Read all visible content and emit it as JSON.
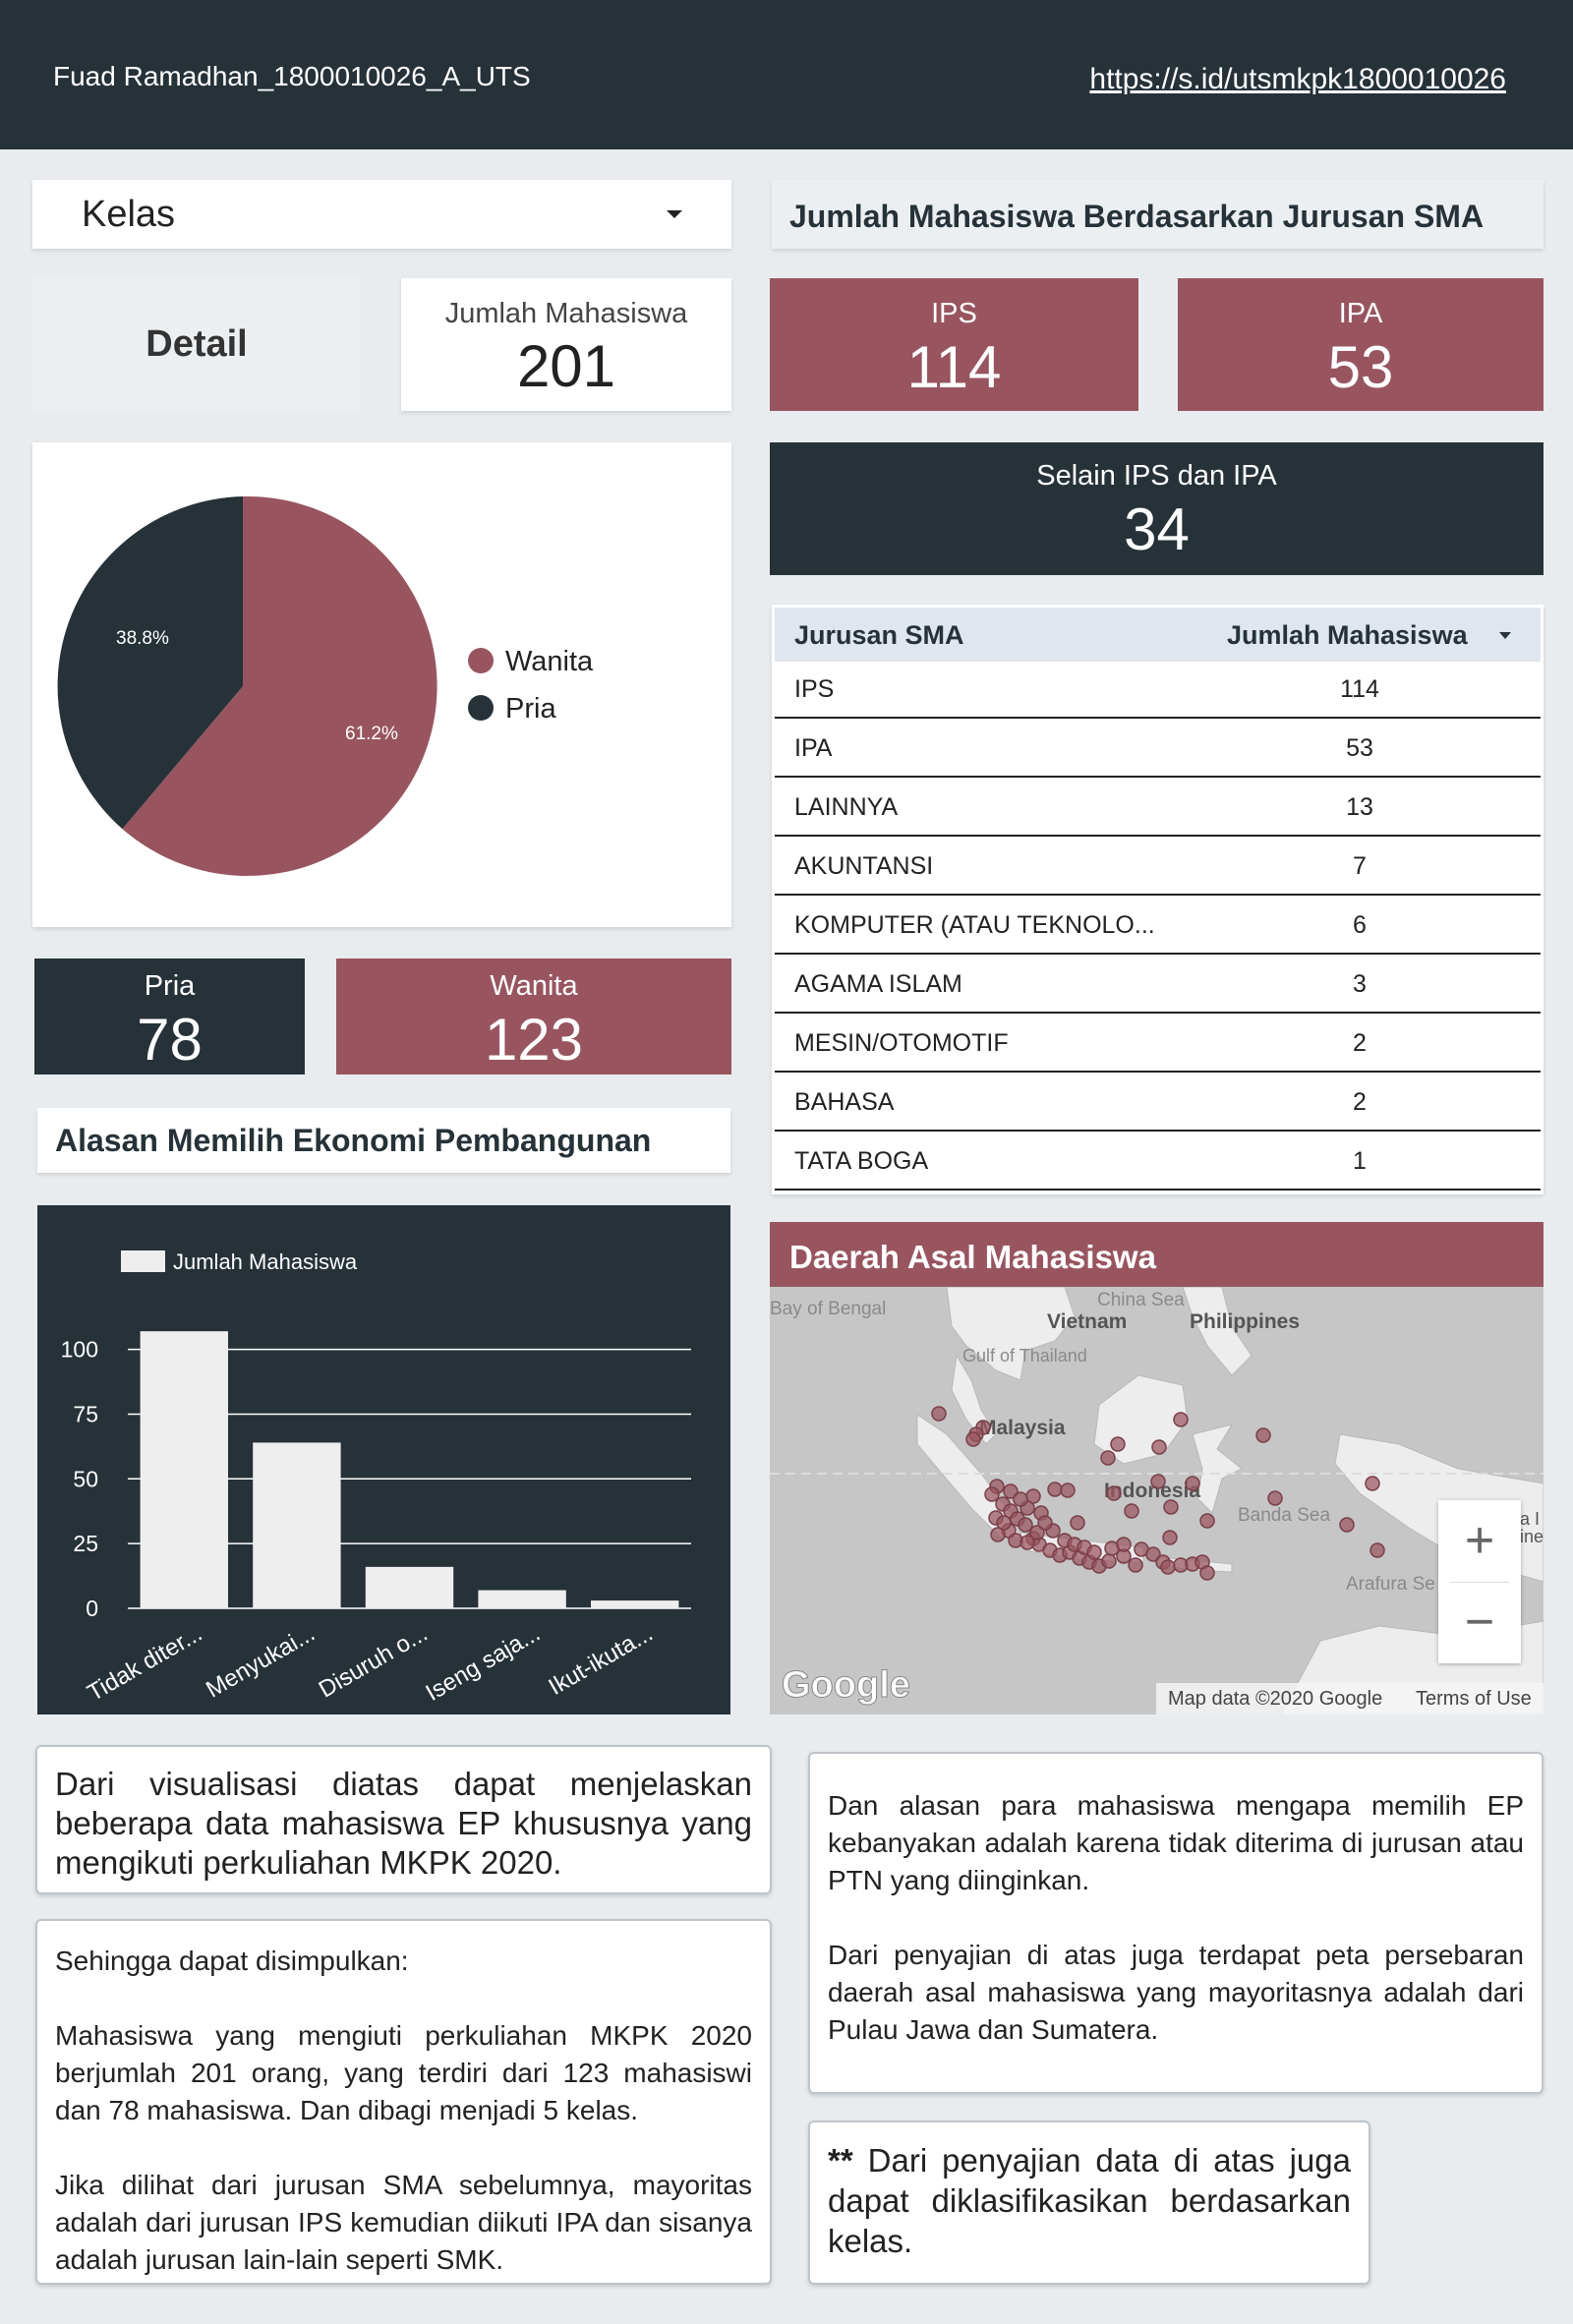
{
  "header": {
    "title": "Fuad Ramadhan_1800010026_A_UTS",
    "link": "https://s.id/utsmkpk1800010026"
  },
  "filter": {
    "label": "Kelas"
  },
  "detail_button": "Detail",
  "total": {
    "label": "Jumlah Mahasiswa",
    "value": "201"
  },
  "gender_pie": {
    "legend": [
      "Wanita",
      "Pria"
    ],
    "pct_wanita": "61.2%",
    "pct_pria": "38.8%",
    "colors": {
      "wanita": "#985560",
      "pria": "#263238"
    }
  },
  "pria": {
    "label": "Pria",
    "value": "78"
  },
  "wanita": {
    "label": "Wanita",
    "value": "123"
  },
  "jurusan_title": "Jumlah Mahasiswa Berdasarkan Jurusan SMA",
  "ips": {
    "label": "IPS",
    "value": "114"
  },
  "ipa": {
    "label": "IPA",
    "value": "53"
  },
  "other": {
    "label": "Selain IPS dan IPA",
    "value": "34"
  },
  "table": {
    "headers": [
      "Jurusan SMA",
      "Jumlah Mahasiswa"
    ],
    "rows": [
      {
        "name": "IPS",
        "count": "114"
      },
      {
        "name": "IPA",
        "count": "53"
      },
      {
        "name": "LAINNYA",
        "count": "13"
      },
      {
        "name": "AKUNTANSI",
        "count": "7"
      },
      {
        "name": "KOMPUTER (ATAU TEKNOLO...",
        "count": "6"
      },
      {
        "name": "AGAMA ISLAM",
        "count": "3"
      },
      {
        "name": "MESIN/OTOMOTIF",
        "count": "2"
      },
      {
        "name": "BAHASA",
        "count": "2"
      },
      {
        "name": "TATA BOGA",
        "count": "1"
      }
    ]
  },
  "alasan_title": "Alasan Memilih Ekonomi Pembangunan",
  "chart_data": {
    "type": "bar",
    "series": [
      {
        "name": "Jumlah Mahasiswa",
        "values": [
          107,
          64,
          16,
          7,
          3
        ]
      }
    ],
    "categories": [
      "Tidak diter...",
      "Menyukai...",
      "Disuruh o...",
      "Iseng saja...",
      "Ikut-ikuta..."
    ],
    "yticks": [
      "0",
      "25",
      "50",
      "75",
      "100"
    ],
    "ylim": [
      0,
      112
    ],
    "grid": true,
    "legend": "top-left"
  },
  "map": {
    "title": "Daerah Asal Mahasiswa",
    "labels": [
      "Bay of Bengal",
      "China Sea",
      "Vietnam",
      "Philippines",
      "Gulf of Thailand",
      "Malaysia",
      "Indonesia",
      "Banda Sea",
      "Arafura Se",
      "a I",
      "ine"
    ],
    "attribution": "Map data ©2020 Google",
    "terms": "Terms of Use",
    "google": "Google",
    "zoom_in": "+",
    "zoom_out": "−"
  },
  "notes": {
    "box1": "Dari visualisasi diatas dapat menjelaskan beberapa data mahasiswa EP khususnya yang mengikuti perkuliahan MKPK 2020.",
    "box2_p1": "Sehingga dapat disimpulkan:",
    "box2_p2": "Mahasiswa yang mengiuti perkuliahan MKPK 2020 berjumlah 201 orang, yang terdiri dari 123 mahasiswi dan 78 mahasiswa. Dan dibagi menjadi 5 kelas.",
    "box2_p3": "Jika dilihat dari jurusan SMA sebelumnya, mayoritas adalah dari jurusan IPS kemudian diikuti IPA dan sisanya adalah jurusan lain-lain seperti SMK.",
    "box3_p1": "Dan alasan para mahasiswa mengapa memilih EP kebanyakan adalah karena tidak diterima di jurusan atau PTN yang diinginkan.",
    "box3_p2": "Dari penyajian di atas juga terdapat peta persebaran daerah asal mahasiswa yang mayoritasnya adalah dari Pulau Jawa dan Sumatera.",
    "box4_star": "**",
    "box4_text": " Dari penyajian data di atas juga dapat diklasifikasikan berdasarkan kelas."
  }
}
